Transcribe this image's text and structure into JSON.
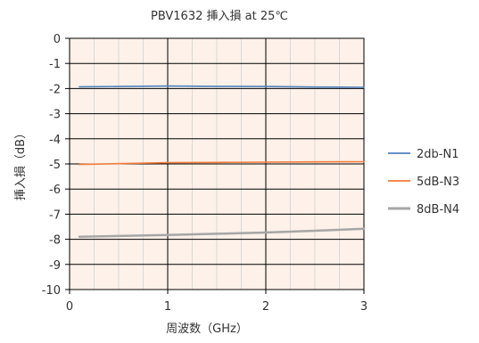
{
  "chart_data": {
    "type": "line",
    "title": "PBV1632 挿入損 at 25℃",
    "xlabel": "周波数（GHz）",
    "ylabel": "挿入損（dB）",
    "xlim": [
      0,
      3
    ],
    "ylim": [
      -10,
      0
    ],
    "xticks": [
      0,
      1,
      2,
      3
    ],
    "xtick_labels": [
      "0",
      "1",
      "2",
      "3"
    ],
    "yticks": [
      0,
      -1,
      -2,
      -3,
      -4,
      -5,
      -6,
      -7,
      -8,
      -9,
      -10
    ],
    "ytick_labels": [
      "0",
      "-1",
      "-2",
      "-3",
      "-4",
      "-5",
      "-6",
      "-7",
      "-8",
      "-9",
      "-10"
    ],
    "grid": true,
    "legend_position": "right",
    "plot_background": "#fdf1e9",
    "series": [
      {
        "name": "2db-N1",
        "color": "#4f81bd",
        "x": [
          0.1,
          0.5,
          1.0,
          1.5,
          2.0,
          2.5,
          3.0
        ],
        "y": [
          -1.93,
          -1.92,
          -1.9,
          -1.91,
          -1.92,
          -1.94,
          -1.95
        ]
      },
      {
        "name": "5dB-N3",
        "color": "#f07c3a",
        "x": [
          0.1,
          0.5,
          1.0,
          1.5,
          2.0,
          2.5,
          3.0
        ],
        "y": [
          -5.02,
          -4.99,
          -4.95,
          -4.94,
          -4.93,
          -4.92,
          -4.91
        ]
      },
      {
        "name": "8dB-N4",
        "color": "#a6a6a6",
        "x": [
          0.1,
          0.5,
          1.0,
          1.5,
          2.0,
          2.5,
          3.0
        ],
        "y": [
          -7.9,
          -7.87,
          -7.83,
          -7.78,
          -7.73,
          -7.66,
          -7.58
        ]
      }
    ]
  }
}
